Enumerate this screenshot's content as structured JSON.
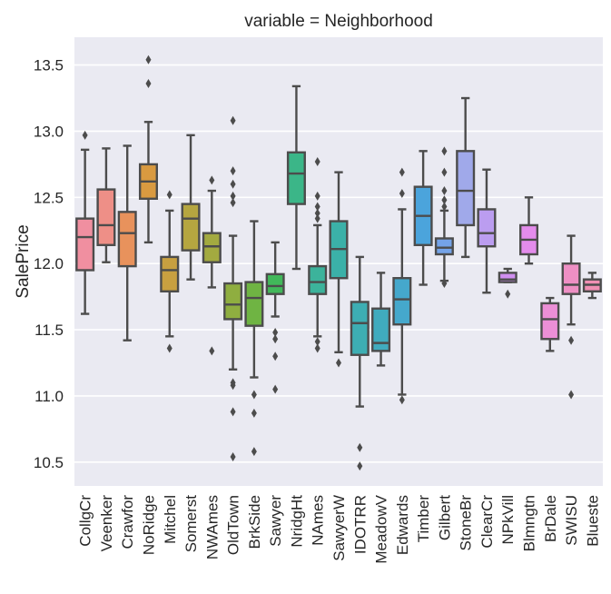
{
  "chart_data": {
    "type": "box",
    "title": "variable = Neighborhood",
    "xlabel": "",
    "ylabel": "SalePrice",
    "ylim": [
      10.32,
      13.71
    ],
    "yticks": [
      "10.5",
      "11.0",
      "11.5",
      "12.0",
      "12.5",
      "13.0",
      "13.5"
    ],
    "ytick_values": [
      10.5,
      11.0,
      11.5,
      12.0,
      12.5,
      13.0,
      13.5
    ],
    "grid": true,
    "legend": "none",
    "categories": [
      "CollgCr",
      "Veenker",
      "Crawfor",
      "NoRidge",
      "Mitchel",
      "Somerst",
      "NWAmes",
      "OldTown",
      "BrkSide",
      "Sawyer",
      "NridgHt",
      "NAmes",
      "SawyerW",
      "IDOTRR",
      "MeadowV",
      "Edwards",
      "Timber",
      "Gilbert",
      "StoneBr",
      "ClearCr",
      "NPkVill",
      "Blmngtn",
      "BrDale",
      "SWISU",
      "Blueste"
    ],
    "colors": [
      "#f08fa0",
      "#ee8f87",
      "#e8925c",
      "#d99a40",
      "#c8a040",
      "#b5a640",
      "#a3aa40",
      "#8fae40",
      "#6fb443",
      "#41b85a",
      "#3bb688",
      "#3cb39b",
      "#3bb1a8",
      "#3daeb3",
      "#40abbe",
      "#45a8cc",
      "#4ba4dc",
      "#74a3e8",
      "#a0a9ea",
      "#bb9df0",
      "#d08ff0",
      "#e48cec",
      "#ec8fd6",
      "#ee8fc4",
      "#f08fb3"
    ],
    "boxes": [
      {
        "name": "CollgCr",
        "whislo": 11.62,
        "q1": 11.95,
        "med": 12.2,
        "q3": 12.34,
        "whishi": 12.86,
        "fliers": [
          12.97
        ]
      },
      {
        "name": "Veenker",
        "whislo": 12.01,
        "q1": 12.14,
        "med": 12.29,
        "q3": 12.56,
        "whishi": 12.87,
        "fliers": []
      },
      {
        "name": "Crawfor",
        "whislo": 11.42,
        "q1": 11.98,
        "med": 12.23,
        "q3": 12.39,
        "whishi": 12.89,
        "fliers": []
      },
      {
        "name": "NoRidge",
        "whislo": 12.16,
        "q1": 12.49,
        "med": 12.62,
        "q3": 12.75,
        "whishi": 13.07,
        "fliers": [
          13.36,
          13.54
        ]
      },
      {
        "name": "Mitchel",
        "whislo": 11.45,
        "q1": 11.79,
        "med": 11.95,
        "q3": 12.05,
        "whishi": 12.4,
        "fliers": [
          12.52,
          11.36
        ]
      },
      {
        "name": "Somerst",
        "whislo": 11.88,
        "q1": 12.1,
        "med": 12.34,
        "q3": 12.45,
        "whishi": 12.97,
        "fliers": []
      },
      {
        "name": "NWAmes",
        "whislo": 11.82,
        "q1": 12.01,
        "med": 12.13,
        "q3": 12.23,
        "whishi": 12.55,
        "fliers": [
          12.63,
          11.34
        ]
      },
      {
        "name": "OldTown",
        "whislo": 11.2,
        "q1": 11.58,
        "med": 11.69,
        "q3": 11.85,
        "whishi": 12.21,
        "fliers": [
          13.08,
          12.7,
          12.6,
          12.51,
          12.46,
          11.1,
          11.08,
          10.88,
          10.54
        ]
      },
      {
        "name": "BrkSide",
        "whislo": 11.14,
        "q1": 11.53,
        "med": 11.74,
        "q3": 11.86,
        "whishi": 12.32,
        "fliers": [
          11.01,
          10.87,
          10.58
        ]
      },
      {
        "name": "Sawyer",
        "whislo": 11.6,
        "q1": 11.77,
        "med": 11.83,
        "q3": 11.92,
        "whishi": 12.16,
        "fliers": [
          11.48,
          11.43,
          11.3,
          11.05
        ]
      },
      {
        "name": "NridgHt",
        "whislo": 11.96,
        "q1": 12.45,
        "med": 12.68,
        "q3": 12.84,
        "whishi": 13.34,
        "fliers": []
      },
      {
        "name": "NAmes",
        "whislo": 11.45,
        "q1": 11.77,
        "med": 11.86,
        "q3": 11.98,
        "whishi": 12.29,
        "fliers": [
          12.77,
          12.51,
          12.43,
          12.38,
          12.34,
          11.41,
          11.36
        ]
      },
      {
        "name": "SawyerW",
        "whislo": 11.33,
        "q1": 11.89,
        "med": 12.11,
        "q3": 12.32,
        "whishi": 12.69,
        "fliers": [
          11.25
        ]
      },
      {
        "name": "IDOTRR",
        "whislo": 10.92,
        "q1": 11.31,
        "med": 11.55,
        "q3": 11.71,
        "whishi": 12.05,
        "fliers": [
          10.61,
          10.47
        ]
      },
      {
        "name": "MeadowV",
        "whislo": 11.23,
        "q1": 11.34,
        "med": 11.4,
        "q3": 11.66,
        "whishi": 11.93,
        "fliers": []
      },
      {
        "name": "Edwards",
        "whislo": 11.01,
        "q1": 11.54,
        "med": 11.73,
        "q3": 11.89,
        "whishi": 12.41,
        "fliers": [
          12.69,
          12.53,
          10.97
        ]
      },
      {
        "name": "Timber",
        "whislo": 11.84,
        "q1": 12.14,
        "med": 12.36,
        "q3": 12.58,
        "whishi": 12.85,
        "fliers": []
      },
      {
        "name": "Gilbert",
        "whislo": 11.87,
        "q1": 12.07,
        "med": 12.12,
        "q3": 12.19,
        "whishi": 12.4,
        "fliers": [
          12.85,
          12.69,
          12.55,
          12.48,
          12.43,
          11.85
        ]
      },
      {
        "name": "StoneBr",
        "whislo": 12.05,
        "q1": 12.29,
        "med": 12.55,
        "q3": 12.85,
        "whishi": 13.25,
        "fliers": []
      },
      {
        "name": "ClearCr",
        "whislo": 11.78,
        "q1": 12.13,
        "med": 12.23,
        "q3": 12.41,
        "whishi": 12.71,
        "fliers": []
      },
      {
        "name": "NPkVill",
        "whislo": 11.86,
        "q1": 11.86,
        "med": 11.88,
        "q3": 11.93,
        "whishi": 11.96,
        "fliers": [
          11.77
        ]
      },
      {
        "name": "Blmngtn",
        "whislo": 12.0,
        "q1": 12.07,
        "med": 12.18,
        "q3": 12.29,
        "whishi": 12.5,
        "fliers": []
      },
      {
        "name": "BrDale",
        "whislo": 11.34,
        "q1": 11.43,
        "med": 11.58,
        "q3": 11.7,
        "whishi": 11.74,
        "fliers": []
      },
      {
        "name": "SWISU",
        "whislo": 11.54,
        "q1": 11.77,
        "med": 11.84,
        "q3": 12.0,
        "whishi": 12.21,
        "fliers": [
          11.42,
          11.01
        ]
      },
      {
        "name": "Blueste",
        "whislo": 11.74,
        "q1": 11.79,
        "med": 11.84,
        "q3": 11.88,
        "whishi": 11.93,
        "fliers": []
      }
    ]
  }
}
